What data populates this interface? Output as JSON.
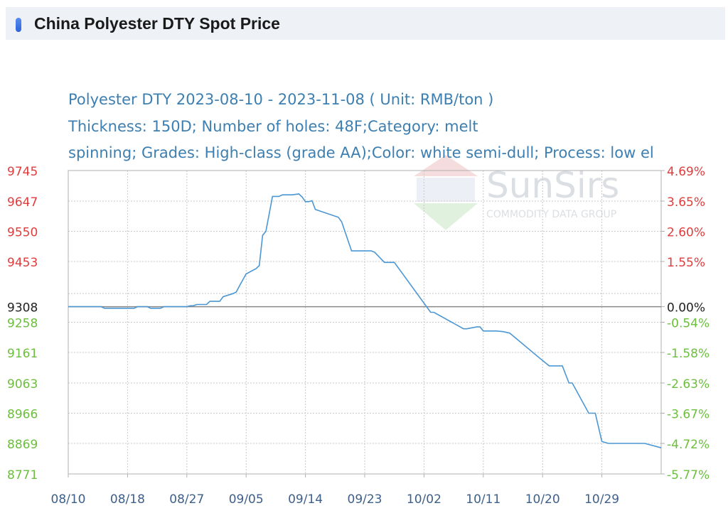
{
  "header": {
    "title": "China Polyester DTY Spot Price"
  },
  "watermark": {
    "brand": "SunSirs",
    "tagline": "COMMODITY DATA GROUP"
  },
  "colors": {
    "line": "#4b97d4",
    "subtitle": "#3d7fb0",
    "positive_axis": "#e03c3c",
    "negative_axis": "#6cbf3c",
    "baseline": "#222222"
  },
  "chart_data": {
    "type": "line",
    "subtitle_lines": [
      "Polyester DTY 2023-08-10 - 2023-11-08     ( Unit: RMB/ton )",
      "Thickness: 150D; Number of holes: 48F;Category: melt",
      "spinning; Grades: High-class (grade AA);Color: white semi-dull; Process: low el"
    ],
    "x_ticks": [
      "08/10",
      "08/18",
      "08/27",
      "09/05",
      "09/14",
      "09/23",
      "10/02",
      "10/11",
      "10/20",
      "10/29"
    ],
    "y_ticks": [
      9745,
      9647,
      9550,
      9453,
      9308,
      9258,
      9161,
      9063,
      8966,
      8869,
      8771
    ],
    "y_tick_labels": [
      "9745",
      "9647",
      "9550",
      "9453",
      "9308",
      "9258",
      "9161",
      "9063",
      "8966",
      "8869",
      "8771"
    ],
    "pct_tick_labels": [
      "4.69%",
      "3.65%",
      "2.60%",
      "1.55%",
      "0.00%",
      "-0.54%",
      "-1.58%",
      "-2.63%",
      "-3.67%",
      "-4.72%",
      "-5.77%"
    ],
    "baseline": 9308,
    "ylim": [
      8771,
      9745
    ],
    "x_range_days": [
      0,
      90
    ],
    "series": [
      {
        "days": [
          0,
          5,
          5.5,
          10,
          10.5,
          12,
          12.5,
          14,
          14.5,
          18,
          18.5,
          19,
          19.5,
          21,
          21.5,
          23,
          23.5,
          25,
          25.5,
          26,
          27,
          28.5,
          29,
          29.5,
          30,
          31,
          32,
          32.5,
          34,
          35,
          35.5,
          36,
          36.5,
          37,
          37.5,
          41,
          41.5,
          43,
          43.5,
          44,
          44.5,
          45,
          46,
          46.5,
          48,
          49,
          49.5,
          55,
          55.5,
          60,
          60.5,
          62,
          62.5,
          63,
          63.5,
          65,
          66,
          67,
          72,
          73,
          75,
          76,
          76.5,
          79,
          80,
          80.5,
          81,
          82,
          84,
          85,
          86,
          86.5,
          87,
          87.5,
          90
        ],
        "values": [
          9308,
          9308,
          9303,
          9303,
          9308,
          9308,
          9303,
          9303,
          9308,
          9308,
          9311,
          9311,
          9315,
          9315,
          9325,
          9325,
          9340,
          9350,
          9355,
          9375,
          9413,
          9430,
          9440,
          9537,
          9550,
          9662,
          9662,
          9667,
          9667,
          9670,
          9660,
          9645,
          9645,
          9648,
          9620,
          9595,
          9580,
          9487,
          9487,
          9487,
          9487,
          9487,
          9487,
          9483,
          9450,
          9450,
          9450,
          9290,
          9290,
          9237,
          9237,
          9243,
          9243,
          9230,
          9230,
          9230,
          9228,
          9223,
          9135,
          9118,
          9118,
          9063,
          9063,
          8966,
          8966,
          8920,
          8875,
          8869,
          8869,
          8869,
          8869,
          8869,
          8869,
          8869,
          8855
        ]
      }
    ],
    "grid": true
  }
}
